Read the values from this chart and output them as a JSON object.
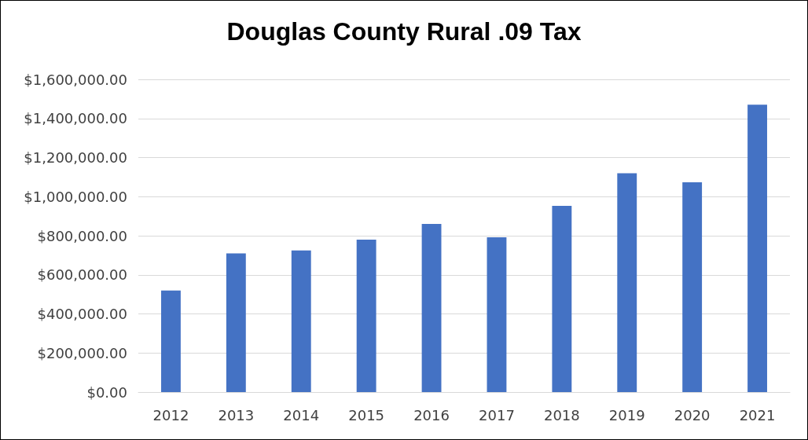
{
  "chart_data": {
    "type": "bar",
    "title": "Douglas County Rural .09 Tax",
    "categories": [
      "2012",
      "2013",
      "2014",
      "2015",
      "2016",
      "2017",
      "2018",
      "2019",
      "2020",
      "2021"
    ],
    "values": [
      520000,
      710000,
      725000,
      780000,
      860000,
      792000,
      953000,
      1120000,
      1073000,
      1470000
    ],
    "color": "#4472c4",
    "ylim": [
      0,
      1600000
    ],
    "yticks": [
      {
        "value": 0,
        "label": "$0.00"
      },
      {
        "value": 200000,
        "label": "$200,000.00"
      },
      {
        "value": 400000,
        "label": "$400,000.00"
      },
      {
        "value": 600000,
        "label": "$600,000.00"
      },
      {
        "value": 800000,
        "label": "$800,000.00"
      },
      {
        "value": 1000000,
        "label": "$1,000,000.00"
      },
      {
        "value": 1200000,
        "label": "$1,200,000.00"
      },
      {
        "value": 1400000,
        "label": "$1,400,000.00"
      },
      {
        "value": 1600000,
        "label": "$1,600,000.00"
      }
    ],
    "grid": "y"
  }
}
